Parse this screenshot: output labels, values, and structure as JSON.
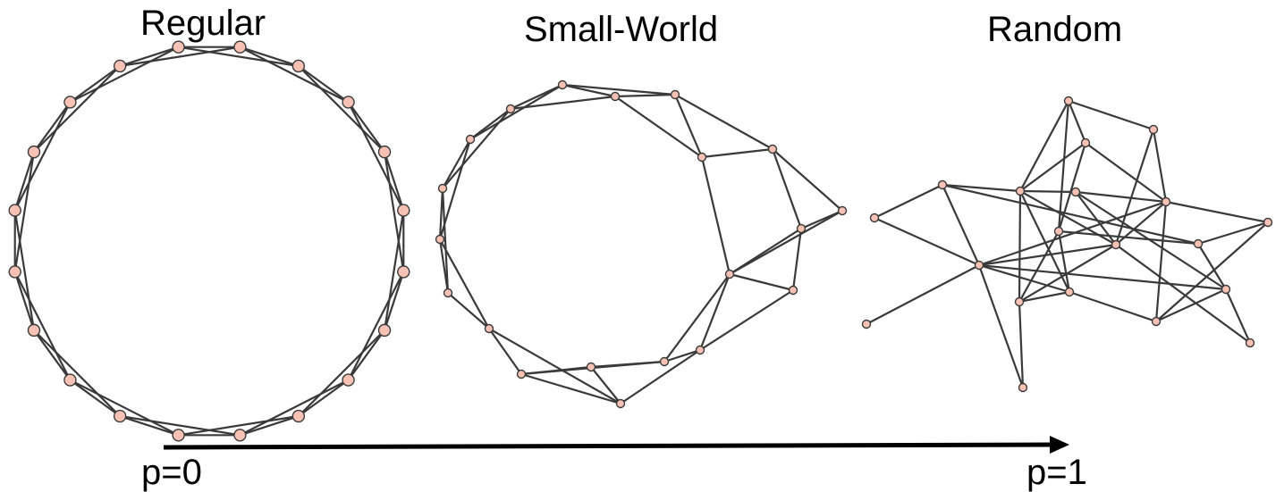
{
  "titles": {
    "regular": "Regular",
    "small_world": "Small-World",
    "random": "Random"
  },
  "axis": {
    "start_label": "p=0",
    "end_label": "p=1"
  },
  "colors": {
    "node_fill": "#f7c2b4",
    "node_stroke": "#3a3a3a",
    "edge": "#3a3a3a",
    "arrow": "#000000"
  },
  "networks": {
    "regular": {
      "node_count": 20,
      "neighbors_each_side": 2
    },
    "small_world": {
      "node_count": 20,
      "neighbors_each_side": 2,
      "rewired": true
    },
    "random": {
      "node_count": 20
    }
  }
}
